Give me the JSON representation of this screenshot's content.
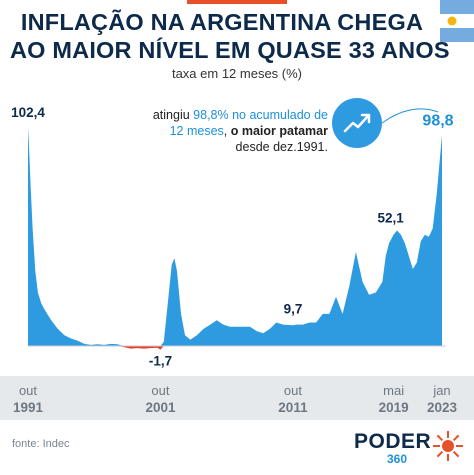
{
  "header": {
    "title_line1": "INFLAÇÃO NA ARGENTINA CHEGA",
    "title_line2": "AO MAIOR NÍVEL EM QUASE 33 ANOS",
    "subtitle": "taxa em 12 meses (%)"
  },
  "annotation": {
    "part1": "atingiu ",
    "highlight1": "98,8% no acumulado de",
    "highlight2": "12 meses",
    "part2": ", ",
    "bold": "o maior patamar",
    "part3": "desde dez.1991."
  },
  "icons": {
    "flag": "argentina-flag-icon",
    "trend": "trend-up-icon",
    "logo": "poder360-logo"
  },
  "colors": {
    "series": "#2e9be0",
    "negative": "#e8402a",
    "title": "#0d2a4a",
    "accent": "#1e90d8"
  },
  "chart_data": {
    "type": "area",
    "series": [
      {
        "values": [
          [
            1991.75,
            102.4
          ],
          [
            1991.85,
            90
          ],
          [
            1991.95,
            75
          ],
          [
            1992.1,
            55
          ],
          [
            1992.3,
            35
          ],
          [
            1992.5,
            25
          ],
          [
            1992.75,
            20
          ],
          [
            1993.0,
            17
          ],
          [
            1993.5,
            12
          ],
          [
            1994.0,
            8
          ],
          [
            1994.5,
            5
          ],
          [
            1995.0,
            3.5
          ],
          [
            1995.5,
            2.5
          ],
          [
            1996.0,
            1
          ],
          [
            1996.5,
            0.5
          ],
          [
            1997.0,
            0.8
          ],
          [
            1997.5,
            0.5
          ],
          [
            1998.0,
            1
          ],
          [
            1998.5,
            0.8
          ],
          [
            1999.0,
            -0.5
          ],
          [
            1999.5,
            -1.2
          ],
          [
            2000.0,
            -1.0
          ],
          [
            2000.5,
            -1.2
          ],
          [
            2001.0,
            -1.0
          ],
          [
            2001.5,
            -0.8
          ],
          [
            2001.75,
            -1.7
          ],
          [
            2002.0,
            2
          ],
          [
            2002.3,
            20
          ],
          [
            2002.6,
            38
          ],
          [
            2002.8,
            41
          ],
          [
            2003.0,
            35
          ],
          [
            2003.3,
            15
          ],
          [
            2003.6,
            5
          ],
          [
            2004.0,
            3
          ],
          [
            2004.5,
            5
          ],
          [
            2005.0,
            8
          ],
          [
            2005.5,
            10
          ],
          [
            2006.0,
            12
          ],
          [
            2006.5,
            10
          ],
          [
            2007.0,
            9
          ],
          [
            2007.5,
            9
          ],
          [
            2008.0,
            9
          ],
          [
            2008.5,
            9
          ],
          [
            2009.0,
            7
          ],
          [
            2009.5,
            6
          ],
          [
            2010.0,
            8
          ],
          [
            2010.5,
            11
          ],
          [
            2011.0,
            10
          ],
          [
            2011.75,
            9.7
          ],
          [
            2012.0,
            10
          ],
          [
            2012.5,
            10
          ],
          [
            2013.0,
            11
          ],
          [
            2013.5,
            11
          ],
          [
            2014.0,
            15
          ],
          [
            2014.5,
            15
          ],
          [
            2015.0,
            23
          ],
          [
            2015.5,
            15
          ],
          [
            2016.0,
            28
          ],
          [
            2016.5,
            44
          ],
          [
            2017.0,
            30
          ],
          [
            2017.5,
            24
          ],
          [
            2018.0,
            25
          ],
          [
            2018.5,
            30
          ],
          [
            2018.75,
            42
          ],
          [
            2019.0,
            48
          ],
          [
            2019.35,
            52.1
          ],
          [
            2019.6,
            54
          ],
          [
            2019.9,
            52
          ],
          [
            2020.2,
            48
          ],
          [
            2020.5,
            42
          ],
          [
            2020.8,
            36
          ],
          [
            2021.1,
            39
          ],
          [
            2021.4,
            49
          ],
          [
            2021.7,
            52
          ],
          [
            2022.0,
            51
          ],
          [
            2022.3,
            55
          ],
          [
            2022.6,
            71
          ],
          [
            2022.8,
            85
          ],
          [
            2023.0,
            98.8
          ]
        ]
      }
    ],
    "data_labels": [
      {
        "x": 1991.75,
        "y": 102.4,
        "text": "102,4"
      },
      {
        "x": 2001.75,
        "y": -1.7,
        "text": "-1,7"
      },
      {
        "x": 2011.75,
        "y": 9.7,
        "text": "9,7"
      },
      {
        "x": 2019.35,
        "y": 52.1,
        "text": "52,1"
      },
      {
        "x": 2023.0,
        "y": 98.8,
        "text": "98,8"
      }
    ],
    "x_ticks": [
      {
        "x": 1991.75,
        "month": "out",
        "year": "1991"
      },
      {
        "x": 2001.75,
        "month": "out",
        "year": "2001"
      },
      {
        "x": 2011.75,
        "month": "out",
        "year": "2011"
      },
      {
        "x": 2019.35,
        "month": "mai",
        "year": "2019"
      },
      {
        "x": 2023.0,
        "month": "jan",
        "year": "2023"
      }
    ],
    "xlim": [
      1991.75,
      2023.0
    ],
    "ylim": [
      -3,
      110
    ],
    "grid": false,
    "legend": "none"
  },
  "footer": {
    "source": "fonte: Indec",
    "logo_word": "PODER",
    "logo_number": "360"
  }
}
